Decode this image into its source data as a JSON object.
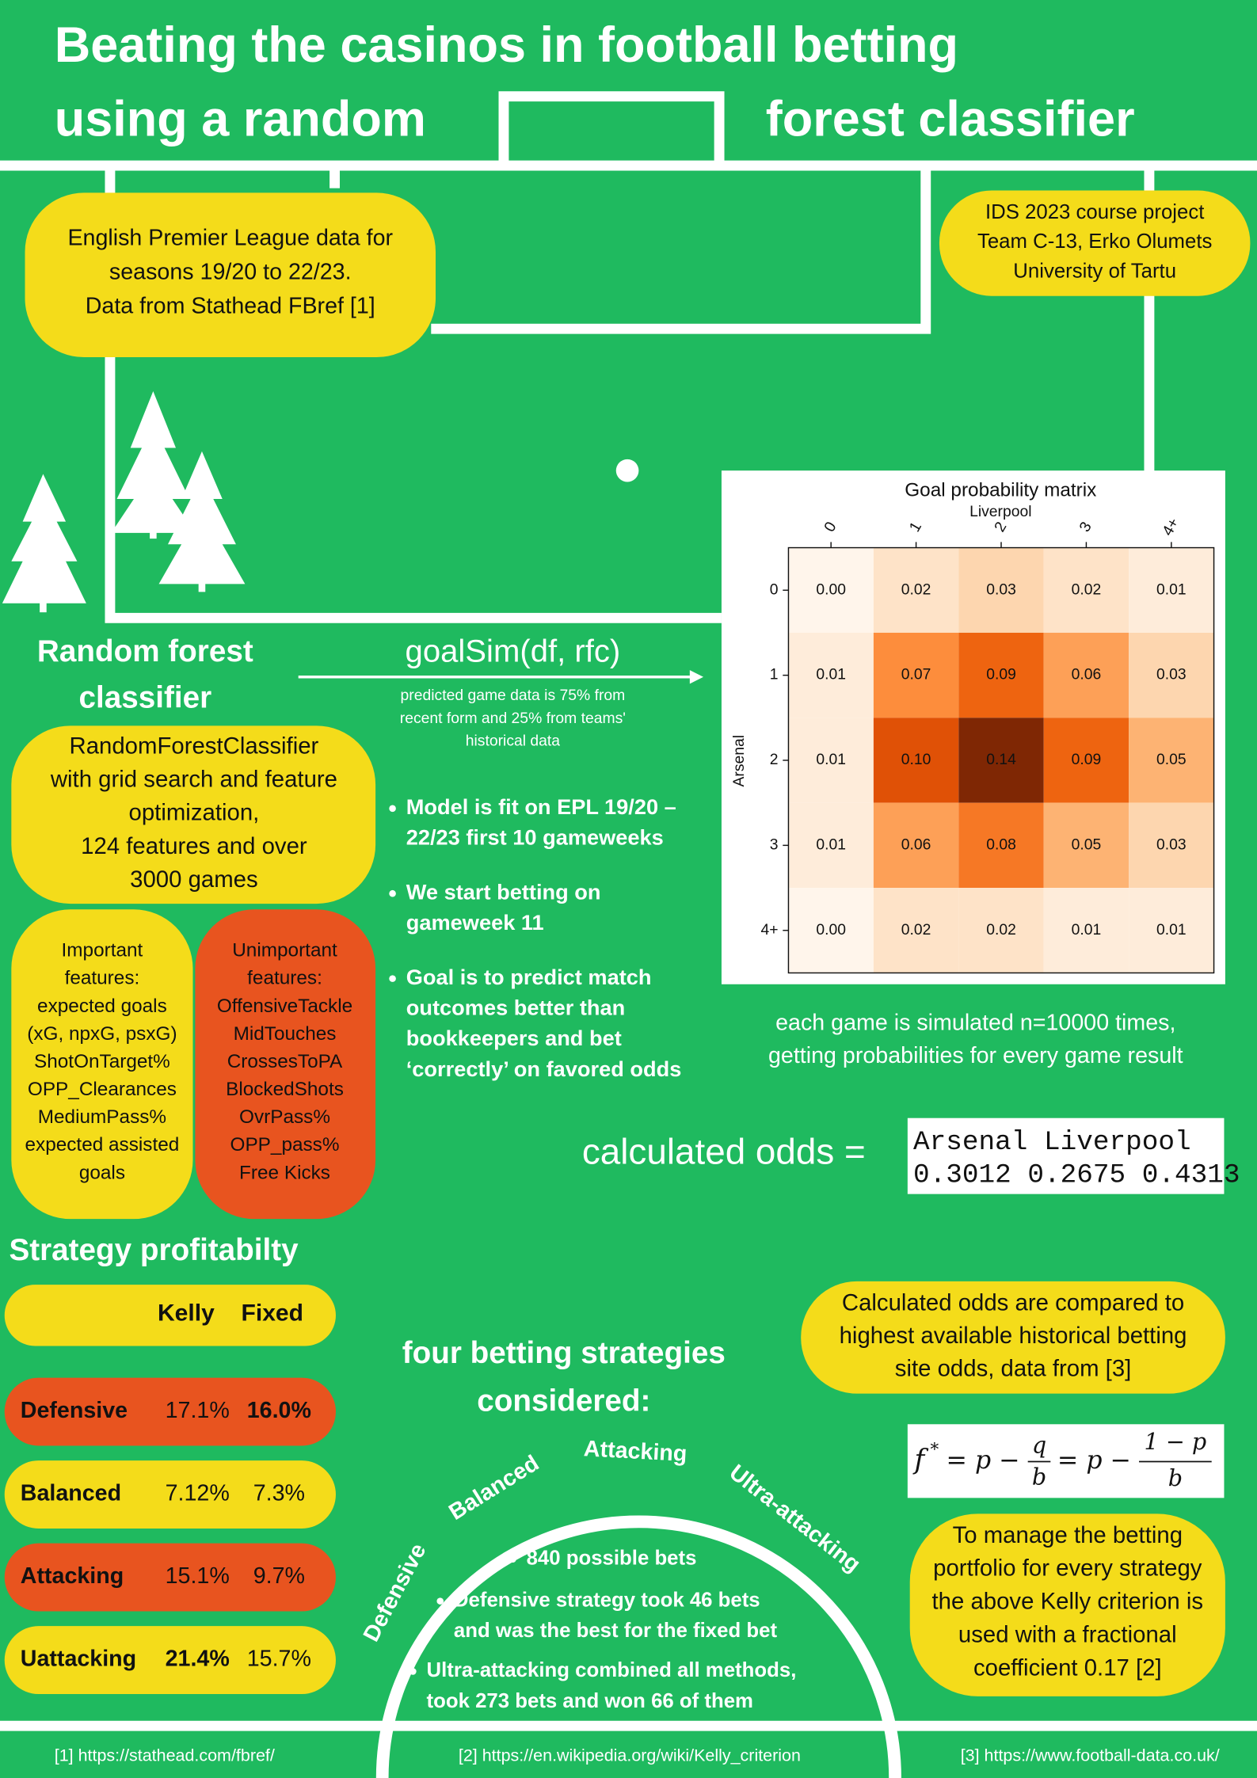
{
  "title": {
    "line1": "Beating the casinos in football betting",
    "line2a": "using a random",
    "line2b": "forest classifier"
  },
  "data_box": [
    "English Premier League data for",
    "seasons 19/20 to 22/23.",
    "Data from Stathead FBref [1]"
  ],
  "project_box": [
    "IDS 2023 course project",
    "Team C-13, Erko Olumets",
    "University of Tartu"
  ],
  "rf_heading": [
    "Random forest",
    "classifier"
  ],
  "rf_box": [
    "RandomForestClassifier",
    "with grid search and feature",
    "optimization,",
    "124 features and over",
    "3000 games"
  ],
  "important": [
    "Important",
    "features:",
    "expected goals",
    "(xG, npxG, psxG)",
    "ShotOnTarget%",
    "OPP_Clearances",
    "MediumPass%",
    "expected assisted",
    "goals"
  ],
  "unimportant": [
    "Unimportant",
    "features:",
    "OffensiveTackle",
    "MidTouches",
    "CrossesToPA",
    "BlockedShots",
    "OvrPass%",
    "OPP_pass%",
    "Free Kicks"
  ],
  "goalsim": {
    "name": "goalSim(df, rfc)",
    "note": [
      "predicted game data is 75% from",
      "recent form and 25% from teams'",
      "historical data"
    ]
  },
  "bullets": [
    [
      "Model is fit on EPL 19/20 –",
      "22/23 first 10 gameweeks"
    ],
    [
      "We start betting on",
      "gameweek 11"
    ],
    [
      "Goal is to predict match",
      "outcomes better than",
      "bookkeepers and bet",
      "‘correctly’ on favored odds"
    ]
  ],
  "chart_data": {
    "type": "heatmap",
    "title": "Goal probability matrix",
    "x_label": "Liverpool",
    "y_label": "Arsenal",
    "x_categories": [
      "0",
      "1",
      "2",
      "3",
      "4+"
    ],
    "y_categories": [
      "0",
      "1",
      "2",
      "3",
      "4+"
    ],
    "values": [
      [
        0.0,
        0.02,
        0.03,
        0.02,
        0.01
      ],
      [
        0.01,
        0.07,
        0.09,
        0.06,
        0.03
      ],
      [
        0.01,
        0.1,
        0.14,
        0.09,
        0.05
      ],
      [
        0.01,
        0.06,
        0.08,
        0.05,
        0.03
      ],
      [
        0.0,
        0.02,
        0.02,
        0.01,
        0.01
      ]
    ],
    "value_labels": [
      [
        "0.00",
        "0.02",
        "0.03",
        "0.02",
        "0.01"
      ],
      [
        "0.01",
        "0.07",
        "0.09",
        "0.06",
        "0.03"
      ],
      [
        "0.01",
        "0.10",
        "0.14",
        "0.09",
        "0.05"
      ],
      [
        "0.01",
        "0.06",
        "0.08",
        "0.05",
        "0.03"
      ],
      [
        "0.00",
        "0.02",
        "0.02",
        "0.01",
        "0.01"
      ]
    ],
    "colormap": "Oranges"
  },
  "simulation": [
    "each game is simulated n=10000 times,",
    "getting probabilities for every game result"
  ],
  "odds": {
    "label": "calculated odds =",
    "header": "Arsenal Liverpool",
    "row": "0.3012 0.2675 0.4313"
  },
  "strategy": {
    "heading": "Strategy profitabilty",
    "header": [
      "Kelly",
      "Fixed"
    ],
    "rows": [
      {
        "name": "Defensive",
        "kelly": "17.1%",
        "fixed": "16.0%",
        "bold": "fixed",
        "color": "#e8541f"
      },
      {
        "name": "Balanced",
        "kelly": "7.12%",
        "fixed": "7.3%",
        "color": "#f4dc1a"
      },
      {
        "name": "Attacking",
        "kelly": "15.1%",
        "fixed": "9.7%",
        "color": "#e8541f"
      },
      {
        "name": "Uattacking",
        "kelly": "21.4%",
        "fixed": "15.7%",
        "bold": "kelly",
        "color": "#f4dc1a"
      }
    ]
  },
  "compare_box": [
    "Calculated odds are compared to",
    "highest available historical betting",
    "site odds,  data from [3]"
  ],
  "formula": {
    "lhs": "f",
    "sup": "*",
    "mid1": "= p −",
    "num1": "q",
    "den1": "b",
    "mid2": "= p −",
    "num2": "1 − p",
    "den2": "b"
  },
  "kelly_box": [
    "To manage the betting",
    "portfolio for every strategy",
    "the above Kelly criterion is",
    "used with a fractional",
    "coefficient 0.17 [2]"
  ],
  "four_heading": [
    "four betting strategies",
    "considered:"
  ],
  "arc_labels": [
    "Defensive",
    "Balanced",
    "Attacking",
    "Ultra-attacking"
  ],
  "arc_bullets": [
    [
      "840 possible bets"
    ],
    [
      "Defensive strategy took 46 bets",
      "and was the best for the fixed bet"
    ],
    [
      "Ultra-attacking combined all methods,",
      "took 273 bets and won 66 of them"
    ]
  ],
  "references": [
    "[1] https://stathead.com/fbref/",
    "[2] https://en.wikipedia.org/wiki/Kelly_criterion",
    "[3] https://www.football-data.co.uk/"
  ]
}
